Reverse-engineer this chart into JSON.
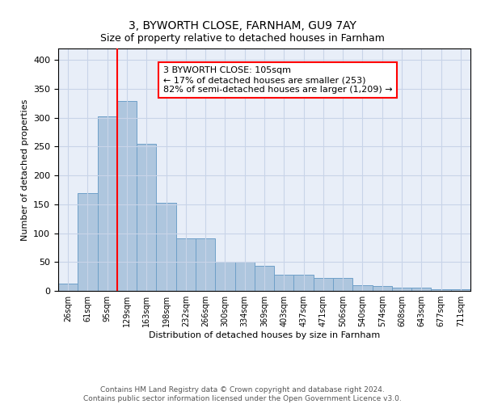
{
  "title": "3, BYWORTH CLOSE, FARNHAM, GU9 7AY",
  "subtitle": "Size of property relative to detached houses in Farnham",
  "xlabel": "Distribution of detached houses by size in Farnham",
  "ylabel": "Number of detached properties",
  "categories": [
    "26sqm",
    "61sqm",
    "95sqm",
    "129sqm",
    "163sqm",
    "198sqm",
    "232sqm",
    "266sqm",
    "300sqm",
    "334sqm",
    "369sqm",
    "403sqm",
    "437sqm",
    "471sqm",
    "506sqm",
    "540sqm",
    "574sqm",
    "608sqm",
    "643sqm",
    "677sqm",
    "711sqm"
  ],
  "values": [
    13,
    170,
    302,
    329,
    255,
    152,
    91,
    91,
    50,
    50,
    43,
    28,
    28,
    22,
    22,
    10,
    9,
    5,
    5,
    3,
    3
  ],
  "bar_color": "#aec6de",
  "bar_edge_color": "#6fa0c8",
  "red_line_x": 2.5,
  "annotation_text": "3 BYWORTH CLOSE: 105sqm\n← 17% of detached houses are smaller (253)\n82% of semi-detached houses are larger (1,209) →",
  "annotation_box_color": "white",
  "annotation_box_edge_color": "red",
  "red_line_color": "red",
  "ylim": [
    0,
    420
  ],
  "yticks": [
    0,
    50,
    100,
    150,
    200,
    250,
    300,
    350,
    400
  ],
  "grid_color": "#c8d4e8",
  "background_color": "#e8eef8",
  "footer": "Contains HM Land Registry data © Crown copyright and database right 2024.\nContains public sector information licensed under the Open Government Licence v3.0.",
  "title_fontsize": 10,
  "annotation_fontsize": 8,
  "footer_fontsize": 6.5,
  "ylabel_fontsize": 8,
  "xlabel_fontsize": 8
}
